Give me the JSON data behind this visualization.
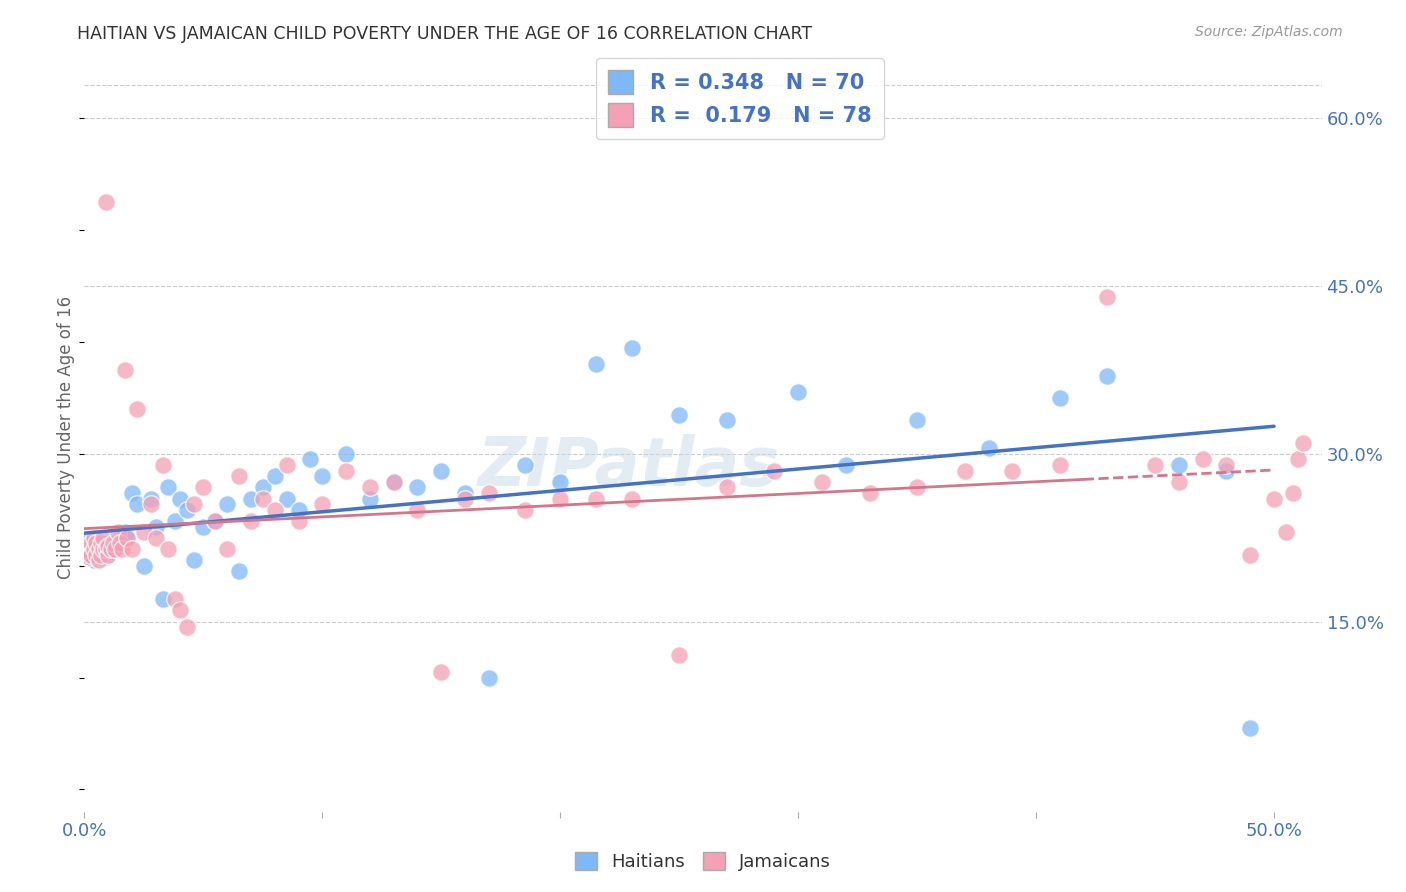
{
  "title": "HAITIAN VS JAMAICAN CHILD POVERTY UNDER THE AGE OF 16 CORRELATION CHART",
  "source": "Source: ZipAtlas.com",
  "ylabel": "Child Poverty Under the Age of 16",
  "xlim": [
    0.0,
    0.52
  ],
  "ylim": [
    -0.02,
    0.65
  ],
  "ytick_labels_right": [
    "15.0%",
    "30.0%",
    "45.0%",
    "60.0%"
  ],
  "ytick_vals_right": [
    0.15,
    0.3,
    0.45,
    0.6
  ],
  "legend_r_haitian": "R = 0.348",
  "legend_n_haitian": "N = 70",
  "legend_r_jamaican": "R =  0.179",
  "legend_n_jamaican": "N = 78",
  "haitian_color": "#7EB8F7",
  "jamaican_color": "#F4A0B5",
  "haitian_line_color": "#4472C4",
  "jamaican_line_color": "#D4768A",
  "watermark": "ZIPatlas",
  "background_color": "#FFFFFF",
  "grid_color": "#CCCCCC",
  "axis_label_color": "#4472C4",
  "haitian_x": [
    0.001,
    0.002,
    0.003,
    0.003,
    0.004,
    0.004,
    0.005,
    0.005,
    0.006,
    0.006,
    0.007,
    0.007,
    0.008,
    0.008,
    0.009,
    0.009,
    0.01,
    0.01,
    0.011,
    0.012,
    0.013,
    0.014,
    0.015,
    0.016,
    0.017,
    0.018,
    0.02,
    0.022,
    0.025,
    0.028,
    0.03,
    0.033,
    0.035,
    0.038,
    0.04,
    0.043,
    0.046,
    0.05,
    0.055,
    0.06,
    0.065,
    0.07,
    0.075,
    0.08,
    0.085,
    0.09,
    0.095,
    0.1,
    0.11,
    0.12,
    0.13,
    0.14,
    0.15,
    0.16,
    0.17,
    0.185,
    0.2,
    0.215,
    0.23,
    0.25,
    0.27,
    0.3,
    0.32,
    0.35,
    0.38,
    0.41,
    0.43,
    0.46,
    0.48,
    0.49
  ],
  "haitian_y": [
    0.215,
    0.22,
    0.21,
    0.225,
    0.205,
    0.218,
    0.212,
    0.222,
    0.207,
    0.215,
    0.208,
    0.22,
    0.215,
    0.21,
    0.215,
    0.208,
    0.212,
    0.218,
    0.215,
    0.22,
    0.215,
    0.218,
    0.225,
    0.22,
    0.23,
    0.225,
    0.265,
    0.255,
    0.2,
    0.26,
    0.235,
    0.17,
    0.27,
    0.24,
    0.26,
    0.25,
    0.205,
    0.235,
    0.24,
    0.255,
    0.195,
    0.26,
    0.27,
    0.28,
    0.26,
    0.25,
    0.295,
    0.28,
    0.3,
    0.26,
    0.275,
    0.27,
    0.285,
    0.265,
    0.1,
    0.29,
    0.275,
    0.38,
    0.395,
    0.335,
    0.33,
    0.355,
    0.29,
    0.33,
    0.305,
    0.35,
    0.37,
    0.29,
    0.285,
    0.055
  ],
  "jamaican_x": [
    0.001,
    0.002,
    0.003,
    0.003,
    0.004,
    0.004,
    0.005,
    0.005,
    0.006,
    0.006,
    0.007,
    0.007,
    0.008,
    0.008,
    0.009,
    0.009,
    0.01,
    0.01,
    0.011,
    0.012,
    0.013,
    0.014,
    0.015,
    0.016,
    0.017,
    0.018,
    0.02,
    0.022,
    0.025,
    0.028,
    0.03,
    0.033,
    0.035,
    0.038,
    0.04,
    0.043,
    0.046,
    0.05,
    0.055,
    0.06,
    0.065,
    0.07,
    0.075,
    0.08,
    0.085,
    0.09,
    0.1,
    0.11,
    0.12,
    0.13,
    0.14,
    0.15,
    0.16,
    0.17,
    0.185,
    0.2,
    0.215,
    0.23,
    0.25,
    0.27,
    0.29,
    0.31,
    0.33,
    0.35,
    0.37,
    0.39,
    0.41,
    0.43,
    0.45,
    0.46,
    0.47,
    0.48,
    0.49,
    0.5,
    0.505,
    0.508,
    0.51,
    0.512
  ],
  "jamaican_y": [
    0.215,
    0.208,
    0.22,
    0.21,
    0.215,
    0.225,
    0.21,
    0.22,
    0.215,
    0.205,
    0.22,
    0.21,
    0.215,
    0.225,
    0.525,
    0.215,
    0.21,
    0.218,
    0.215,
    0.22,
    0.215,
    0.23,
    0.22,
    0.215,
    0.375,
    0.225,
    0.215,
    0.34,
    0.23,
    0.255,
    0.225,
    0.29,
    0.215,
    0.17,
    0.16,
    0.145,
    0.255,
    0.27,
    0.24,
    0.215,
    0.28,
    0.24,
    0.26,
    0.25,
    0.29,
    0.24,
    0.255,
    0.285,
    0.27,
    0.275,
    0.25,
    0.105,
    0.26,
    0.265,
    0.25,
    0.26,
    0.26,
    0.26,
    0.12,
    0.27,
    0.285,
    0.275,
    0.265,
    0.27,
    0.285,
    0.285,
    0.29,
    0.44,
    0.29,
    0.275,
    0.295,
    0.29,
    0.21,
    0.26,
    0.23,
    0.265,
    0.295,
    0.31
  ]
}
